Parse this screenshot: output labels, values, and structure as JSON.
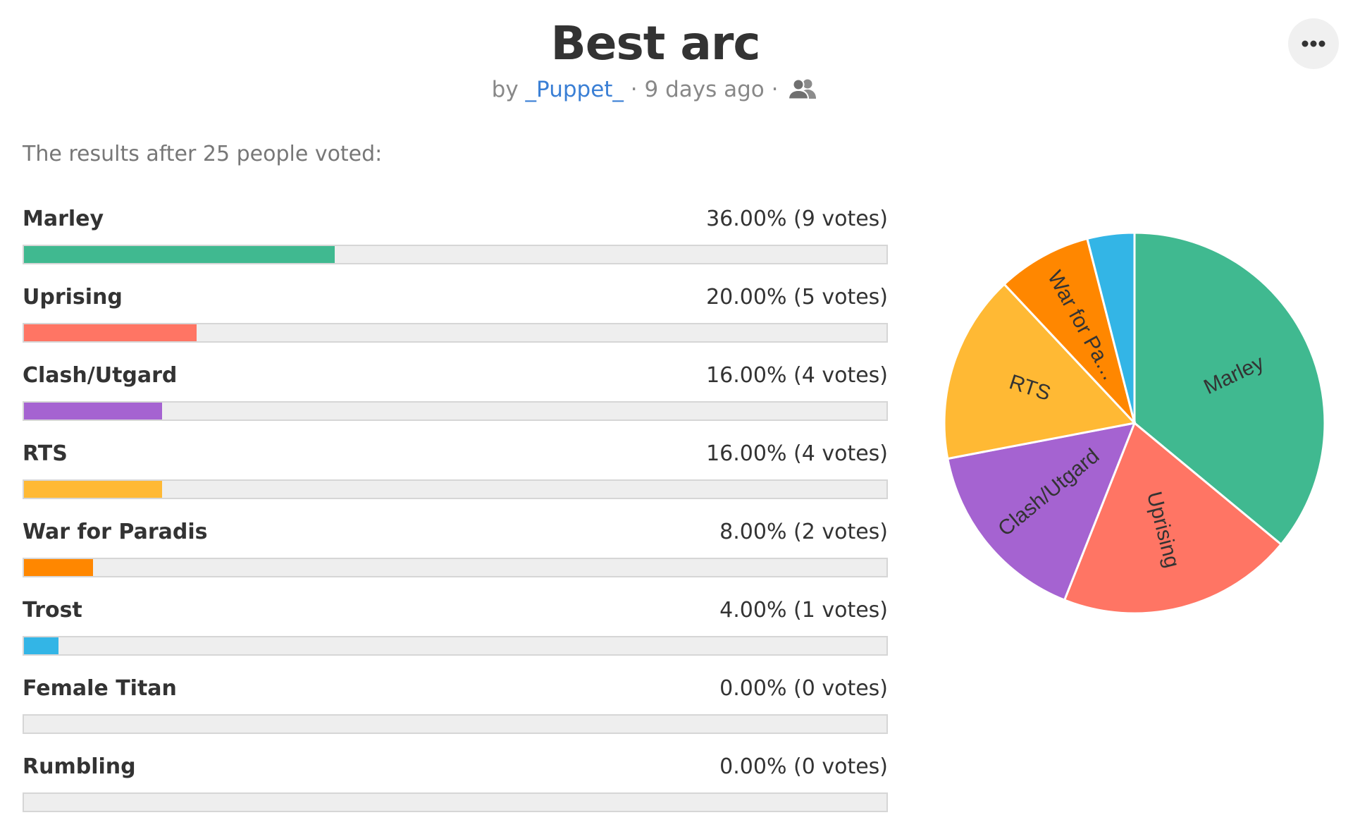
{
  "poll": {
    "title": "Best arc",
    "by_prefix": "by",
    "author": "_Puppet_",
    "separator": "·",
    "age": "9 days ago",
    "audience_icon": "people-icon",
    "menu_icon": "more-horizontal-icon",
    "summary": "The results after 25 people voted:"
  },
  "chart_data": {
    "type": "bar",
    "title": "Best arc",
    "unit": "percent",
    "categories": [
      "Marley",
      "Uprising",
      "Clash/Utgard",
      "RTS",
      "War for Paradis",
      "Trost",
      "Female Titan",
      "Rumbling"
    ],
    "values": [
      36.0,
      20.0,
      16.0,
      16.0,
      8.0,
      4.0,
      0.0,
      0.0
    ],
    "votes": [
      9,
      5,
      4,
      4,
      2,
      1,
      0,
      0
    ],
    "value_labels": [
      "36.00% (9 votes)",
      "20.00% (5 votes)",
      "16.00% (4 votes)",
      "16.00% (4 votes)",
      "8.00% (2 votes)",
      "4.00% (1 votes)",
      "0.00% (0 votes)",
      "0.00% (0 votes)"
    ],
    "colors": [
      "#40b990",
      "#ff7564",
      "#a563d1",
      "#ffb934",
      "#ff8700",
      "#33b5e6",
      "#9e9e9e",
      "#9e9e9e"
    ],
    "xlim": [
      0,
      100
    ],
    "pie": {
      "type": "pie",
      "slice_labels": [
        "Marley",
        "Uprising",
        "Clash/Utgard",
        "RTS",
        "War for Pa…",
        "",
        "",
        ""
      ]
    }
  }
}
